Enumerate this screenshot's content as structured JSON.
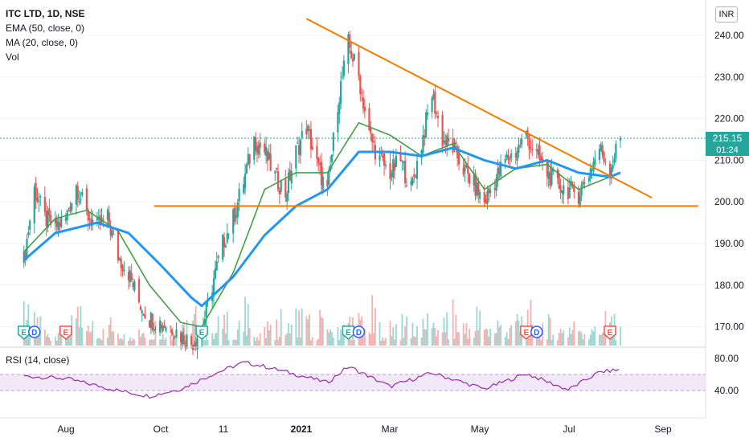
{
  "legend": {
    "symbol": "ITC LTD, 1D, NSE",
    "ema": "EMA (50, close, 0)",
    "ma": "MA (20, close, 0)",
    "vol": "Vol",
    "rsi": "RSI (14, close)"
  },
  "currency": "INR",
  "price_tag": {
    "price": "215.15",
    "countdown": "01:24"
  },
  "colors": {
    "up": "#26a69a",
    "down": "#ef5350",
    "ema": "#2196f3",
    "ma": "#43a047",
    "trendline": "#f57c00",
    "rsi": "#9c27b0",
    "rsi_band": "#ede0f5",
    "grid": "#f0f3fa",
    "event_earnings": "#ef5350",
    "event_dividend": "#26a69a",
    "event_dividend_alt": "#2962ff"
  },
  "chart_data": {
    "type": "candlestick",
    "title": "ITC LTD, 1D, NSE",
    "price_axis": {
      "ylim": [
        165,
        245
      ],
      "ticks": [
        "240.00",
        "230.00",
        "220.00",
        "210.00",
        "200.00",
        "190.00",
        "180.00",
        "170.00"
      ]
    },
    "rsi_axis": {
      "ylim": [
        20,
        90
      ],
      "ticks": [
        "80.00",
        "40.00"
      ],
      "band": [
        40,
        60
      ]
    },
    "time_axis": {
      "labels": [
        "Aug",
        "Oct",
        "11",
        "2021",
        "Mar",
        "May",
        "Jul",
        "Sep"
      ]
    },
    "close_series": [
      {
        "t": "2020-07-06",
        "v": 186
      },
      {
        "t": "2020-07-13",
        "v": 203
      },
      {
        "t": "2020-07-20",
        "v": 196
      },
      {
        "t": "2020-07-27",
        "v": 194
      },
      {
        "t": "2020-08-03",
        "v": 196
      },
      {
        "t": "2020-08-10",
        "v": 204
      },
      {
        "t": "2020-08-17",
        "v": 197
      },
      {
        "t": "2020-08-24",
        "v": 194
      },
      {
        "t": "2020-08-31",
        "v": 196
      },
      {
        "t": "2020-09-07",
        "v": 187
      },
      {
        "t": "2020-09-14",
        "v": 183
      },
      {
        "t": "2020-09-21",
        "v": 176
      },
      {
        "t": "2020-09-28",
        "v": 172
      },
      {
        "t": "2020-10-05",
        "v": 171
      },
      {
        "t": "2020-10-12",
        "v": 170
      },
      {
        "t": "2020-10-19",
        "v": 168
      },
      {
        "t": "2020-10-26",
        "v": 166
      },
      {
        "t": "2020-11-02",
        "v": 169
      },
      {
        "t": "2020-11-09",
        "v": 180
      },
      {
        "t": "2020-11-16",
        "v": 190
      },
      {
        "t": "2020-11-23",
        "v": 196
      },
      {
        "t": "2020-11-30",
        "v": 205
      },
      {
        "t": "2020-12-07",
        "v": 215
      },
      {
        "t": "2020-12-14",
        "v": 212
      },
      {
        "t": "2020-12-21",
        "v": 206
      },
      {
        "t": "2020-12-28",
        "v": 202
      },
      {
        "t": "2021-01-04",
        "v": 212
      },
      {
        "t": "2021-01-11",
        "v": 218
      },
      {
        "t": "2021-01-18",
        "v": 209
      },
      {
        "t": "2021-01-25",
        "v": 202
      },
      {
        "t": "2021-02-01",
        "v": 224
      },
      {
        "t": "2021-02-08",
        "v": 238
      },
      {
        "t": "2021-02-15",
        "v": 230
      },
      {
        "t": "2021-02-22",
        "v": 216
      },
      {
        "t": "2021-03-01",
        "v": 210
      },
      {
        "t": "2021-03-08",
        "v": 207
      },
      {
        "t": "2021-03-15",
        "v": 210
      },
      {
        "t": "2021-03-22",
        "v": 203
      },
      {
        "t": "2021-03-29",
        "v": 214
      },
      {
        "t": "2021-04-05",
        "v": 226
      },
      {
        "t": "2021-04-12",
        "v": 215
      },
      {
        "t": "2021-04-19",
        "v": 213
      },
      {
        "t": "2021-04-26",
        "v": 208
      },
      {
        "t": "2021-05-03",
        "v": 204
      },
      {
        "t": "2021-05-10",
        "v": 200
      },
      {
        "t": "2021-05-17",
        "v": 205
      },
      {
        "t": "2021-05-24",
        "v": 210
      },
      {
        "t": "2021-05-31",
        "v": 212
      },
      {
        "t": "2021-06-07",
        "v": 216
      },
      {
        "t": "2021-06-14",
        "v": 211
      },
      {
        "t": "2021-06-21",
        "v": 207
      },
      {
        "t": "2021-06-28",
        "v": 204
      },
      {
        "t": "2021-07-05",
        "v": 203
      },
      {
        "t": "2021-07-12",
        "v": 202
      },
      {
        "t": "2021-07-19",
        "v": 207
      },
      {
        "t": "2021-07-26",
        "v": 213
      },
      {
        "t": "2021-08-02",
        "v": 208
      },
      {
        "t": "2021-08-09",
        "v": 215.15
      }
    ],
    "ema_50": [
      {
        "t": "2020-07-06",
        "v": 186
      },
      {
        "t": "2020-07-27",
        "v": 192.5
      },
      {
        "t": "2020-08-24",
        "v": 195
      },
      {
        "t": "2020-09-14",
        "v": 192.5
      },
      {
        "t": "2020-10-05",
        "v": 185
      },
      {
        "t": "2020-10-26",
        "v": 177
      },
      {
        "t": "2020-11-02",
        "v": 175
      },
      {
        "t": "2020-11-23",
        "v": 182
      },
      {
        "t": "2020-12-14",
        "v": 192
      },
      {
        "t": "2021-01-04",
        "v": 199
      },
      {
        "t": "2021-01-25",
        "v": 203
      },
      {
        "t": "2021-02-15",
        "v": 212
      },
      {
        "t": "2021-03-08",
        "v": 212
      },
      {
        "t": "2021-03-29",
        "v": 211
      },
      {
        "t": "2021-04-19",
        "v": 213
      },
      {
        "t": "2021-05-10",
        "v": 210
      },
      {
        "t": "2021-05-31",
        "v": 208
      },
      {
        "t": "2021-06-21",
        "v": 210
      },
      {
        "t": "2021-07-12",
        "v": 207
      },
      {
        "t": "2021-08-02",
        "v": 206
      },
      {
        "t": "2021-08-09",
        "v": 207
      }
    ],
    "ma_20": [
      {
        "t": "2020-07-06",
        "v": 188
      },
      {
        "t": "2020-07-27",
        "v": 196
      },
      {
        "t": "2020-08-17",
        "v": 198
      },
      {
        "t": "2020-09-07",
        "v": 193
      },
      {
        "t": "2020-09-28",
        "v": 180
      },
      {
        "t": "2020-10-19",
        "v": 171
      },
      {
        "t": "2020-11-02",
        "v": 170
      },
      {
        "t": "2020-11-23",
        "v": 183
      },
      {
        "t": "2020-12-14",
        "v": 203
      },
      {
        "t": "2021-01-04",
        "v": 207
      },
      {
        "t": "2021-01-25",
        "v": 207
      },
      {
        "t": "2021-02-15",
        "v": 219
      },
      {
        "t": "2021-03-08",
        "v": 216
      },
      {
        "t": "2021-03-29",
        "v": 211
      },
      {
        "t": "2021-04-19",
        "v": 214
      },
      {
        "t": "2021-05-10",
        "v": 203
      },
      {
        "t": "2021-05-31",
        "v": 208
      },
      {
        "t": "2021-06-21",
        "v": 209
      },
      {
        "t": "2021-07-12",
        "v": 203
      },
      {
        "t": "2021-08-02",
        "v": 206
      },
      {
        "t": "2021-08-09",
        "v": 207
      }
    ],
    "trendlines": [
      {
        "name": "descending",
        "from": {
          "t": "2021-01-11",
          "v": 244
        },
        "to": {
          "t": "2021-08-30",
          "v": 201
        }
      },
      {
        "name": "support",
        "from": {
          "t": "2020-10-01",
          "v": 199
        },
        "to": {
          "t": "2021-09-30",
          "v": 199
        }
      }
    ],
    "rsi": [
      {
        "t": "2020-07-06",
        "v": 58
      },
      {
        "t": "2020-08-03",
        "v": 55
      },
      {
        "t": "2020-09-07",
        "v": 40
      },
      {
        "t": "2020-09-28",
        "v": 33
      },
      {
        "t": "2020-10-19",
        "v": 42
      },
      {
        "t": "2020-11-09",
        "v": 60
      },
      {
        "t": "2020-11-30",
        "v": 75
      },
      {
        "t": "2020-12-14",
        "v": 70
      },
      {
        "t": "2021-01-04",
        "v": 60
      },
      {
        "t": "2021-01-25",
        "v": 50
      },
      {
        "t": "2021-02-08",
        "v": 70
      },
      {
        "t": "2021-03-08",
        "v": 45
      },
      {
        "t": "2021-04-05",
        "v": 62
      },
      {
        "t": "2021-05-10",
        "v": 42
      },
      {
        "t": "2021-06-07",
        "v": 61
      },
      {
        "t": "2021-07-05",
        "v": 41
      },
      {
        "t": "2021-07-26",
        "v": 63
      },
      {
        "t": "2021-08-09",
        "v": 66
      }
    ],
    "volume_bars": 300,
    "events": [
      {
        "label": "E",
        "t": "2020-07-06",
        "kind": "earnings-alt"
      },
      {
        "label": "D",
        "t": "2020-07-13",
        "kind": "dividend"
      },
      {
        "label": "E",
        "t": "2020-08-03",
        "kind": "earnings"
      },
      {
        "label": "E",
        "t": "2020-11-02",
        "kind": "earnings-alt"
      },
      {
        "label": "E",
        "t": "2021-02-08",
        "kind": "earnings-alt"
      },
      {
        "label": "D",
        "t": "2021-02-15",
        "kind": "dividend"
      },
      {
        "label": "E",
        "t": "2021-06-07",
        "kind": "earnings"
      },
      {
        "label": "D",
        "t": "2021-06-14",
        "kind": "dividend"
      },
      {
        "label": "E",
        "t": "2021-08-02",
        "kind": "earnings"
      }
    ]
  }
}
